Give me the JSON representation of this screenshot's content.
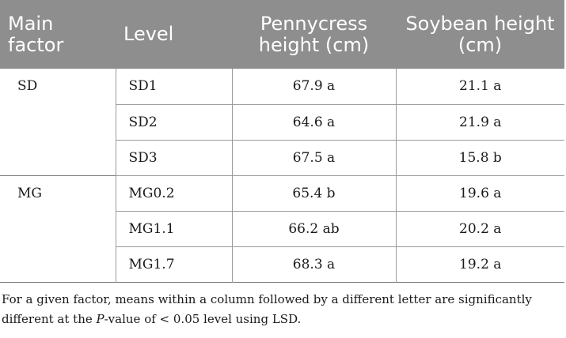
{
  "table": {
    "headers": {
      "main_factor": [
        "Main",
        "factor"
      ],
      "level": "Level",
      "pennycress": [
        "Pennycress",
        "height (cm)"
      ],
      "soybean": [
        "Soybean height",
        "(cm)"
      ]
    },
    "groups": [
      {
        "factor": "SD",
        "rows": [
          {
            "level": "SD1",
            "pennycress": "67.9 a",
            "soybean": "21.1 a"
          },
          {
            "level": "SD2",
            "pennycress": "64.6 a",
            "soybean": "21.9 a"
          },
          {
            "level": "SD3",
            "pennycress": "67.5 a",
            "soybean": "15.8 b"
          }
        ]
      },
      {
        "factor": "MG",
        "rows": [
          {
            "level": "MG0.2",
            "pennycress": "65.4 b",
            "soybean": "19.6 a"
          },
          {
            "level": "MG1.1",
            "pennycress": "66.2 ab",
            "soybean": "20.2 a"
          },
          {
            "level": "MG1.7",
            "pennycress": "68.3 a",
            "soybean": "19.2 a"
          }
        ]
      }
    ]
  },
  "footnote": {
    "before": "For a given factor, means within a column followed by a different letter are significantly different at the ",
    "italic": "P",
    "after": "-value of < 0.05 level using LSD."
  }
}
